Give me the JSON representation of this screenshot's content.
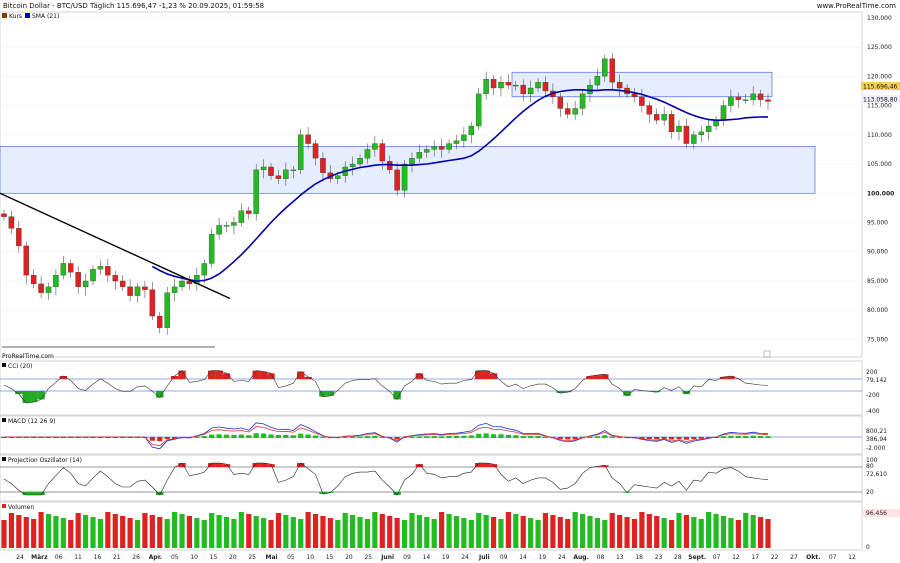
{
  "header": {
    "title": "Bitcoin Dollar - BTC/USD Täglich 115.696,47 -1,23 % 20.09.2025, 01:59:58",
    "site": "www.ProRealTime.com"
  },
  "watermark": "ProRealTime.com",
  "panels": {
    "price": {
      "legend": [
        "Kurs",
        "SMA (21)"
      ],
      "last_price": "115.696,46",
      "sma_value": "113.058,80"
    },
    "cci": {
      "legend": "CCI (20)",
      "value": "79,142",
      "ticks": [
        "200",
        "0",
        "-200",
        "-400"
      ]
    },
    "macd": {
      "legend": "MACD (12 26 9)",
      "value_a": "800,21",
      "value_b": "386,94",
      "ticks": [
        "2.000",
        "-2.000"
      ]
    },
    "proj": {
      "legend": "Projection Oszillator (14)",
      "value": "72,610",
      "ticks": [
        "100",
        "80",
        "20",
        "0"
      ]
    },
    "vol": {
      "legend": "Volumen",
      "value": "96.456",
      "ticks": [
        "0"
      ]
    }
  },
  "colors": {
    "up": "#22bb22",
    "down": "#dd2222",
    "sma": "#0000aa",
    "zone": "#dce6ff",
    "zone_border": "#3355dd",
    "label_bg": "#f5d34a"
  },
  "chart_data": {
    "type": "line",
    "title": "Bitcoin Dollar - BTC/USD Täglich",
    "x_labels": [
      "24",
      "März",
      "06",
      "11",
      "16",
      "21",
      "26",
      "Apr.",
      "05",
      "10",
      "15",
      "20",
      "25",
      "Mai",
      "05",
      "10",
      "15",
      "20",
      "25",
      "Juni",
      "09",
      "14",
      "19",
      "24",
      "Juli",
      "09",
      "14",
      "19",
      "24",
      "Aug.",
      "08",
      "13",
      "18",
      "23",
      "28",
      "Sept.",
      "07",
      "12",
      "17",
      "22",
      "27",
      "Okt.",
      "07",
      "12"
    ],
    "y_ticks": [
      75000,
      80000,
      85000,
      90000,
      95000,
      100000,
      105000,
      110000,
      115000,
      120000,
      125000,
      130000
    ],
    "y_tick_labels": [
      "75.000",
      "80.000",
      "85.000",
      "90.000",
      "95.000",
      "100.000",
      "105.000",
      "110.000",
      "115.000",
      "120.000",
      "125.000",
      "130.000"
    ],
    "ylim": [
      72000,
      131000
    ],
    "series": [
      {
        "name": "Kurs",
        "values": [
          96000,
          94000,
          91000,
          86000,
          84500,
          83000,
          84000,
          86000,
          88000,
          86500,
          84000,
          85000,
          87000,
          87500,
          86000,
          85000,
          84000,
          82500,
          84000,
          83500,
          79000,
          77000,
          83000,
          84000,
          85000,
          84500,
          86000,
          88000,
          93000,
          94500,
          94500,
          95000,
          97000,
          96500,
          104000,
          104500,
          103000,
          102500,
          104000,
          104000,
          110000,
          108500,
          106000,
          103500,
          102500,
          103000,
          104500,
          105000,
          106000,
          107500,
          108500,
          105500,
          104000,
          100500,
          105000,
          106000,
          107000,
          107500,
          108000,
          107500,
          108500,
          109000,
          110000,
          111500,
          117000,
          119500,
          118000,
          119000,
          118500,
          118500,
          117000,
          118000,
          119000,
          117500,
          116500,
          114500,
          113500,
          114500,
          117000,
          118500,
          120000,
          123000,
          119000,
          118000,
          117000,
          116500,
          115000,
          113500,
          112500,
          113500,
          110500,
          111500,
          108500,
          110000,
          110500,
          111500,
          112500,
          115000,
          116500,
          116000,
          116000,
          117000,
          116000,
          115700
        ]
      },
      {
        "name": "SMA (21)",
        "values": [
          null,
          null,
          null,
          null,
          null,
          null,
          null,
          null,
          null,
          null,
          null,
          null,
          null,
          null,
          null,
          null,
          null,
          null,
          null,
          null,
          87500,
          86800,
          86200,
          85800,
          85500,
          85200,
          85000,
          85100,
          85500,
          86200,
          87200,
          88300,
          89500,
          90800,
          92200,
          93600,
          95000,
          96300,
          97500,
          98600,
          99700,
          100700,
          101600,
          102300,
          102900,
          103400,
          103800,
          104100,
          104400,
          104600,
          104800,
          104900,
          104900,
          104800,
          104800,
          104800,
          104900,
          105000,
          105200,
          105400,
          105600,
          105800,
          106000,
          106400,
          107200,
          108200,
          109300,
          110500,
          111700,
          112900,
          114000,
          115000,
          115900,
          116600,
          117100,
          117400,
          117600,
          117700,
          117700,
          117600,
          117600,
          117700,
          117700,
          117600,
          117400,
          117200,
          116900,
          116500,
          116100,
          115600,
          115000,
          114400,
          113800,
          113300,
          112900,
          112600,
          112500,
          112500,
          112600,
          112700,
          112900,
          113000,
          113050,
          113060
        ]
      }
    ],
    "zones": [
      [
        100000,
        108000
      ],
      [
        116500,
        120700
      ]
    ],
    "trendline": {
      "from": [
        100000,
        "start"
      ],
      "to": [
        82000,
        "Apr. 20"
      ]
    }
  }
}
